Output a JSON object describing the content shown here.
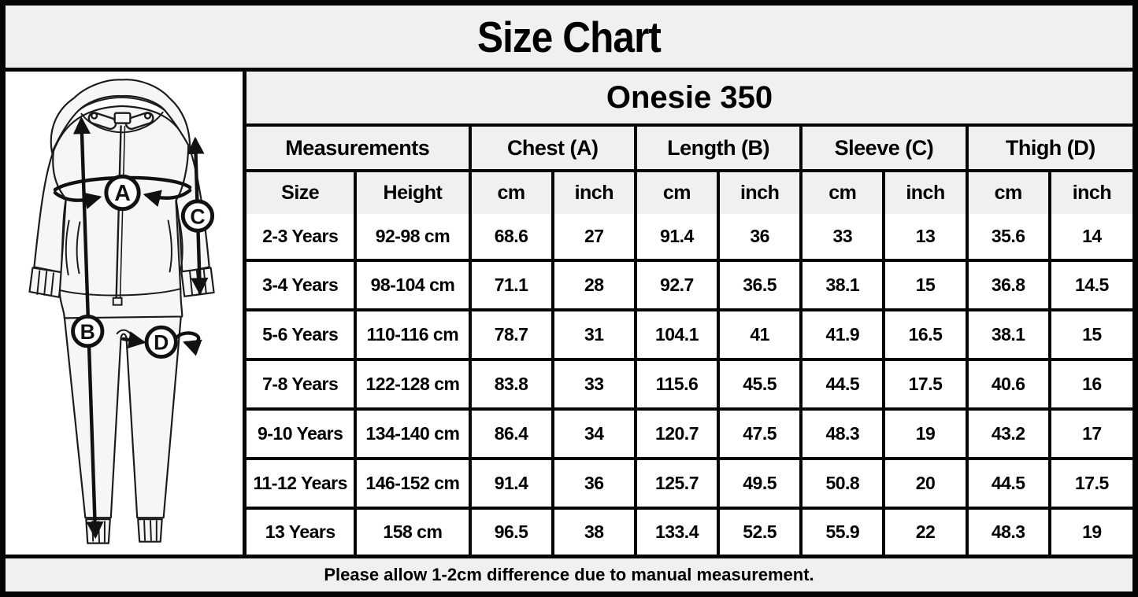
{
  "title": "Size Chart",
  "table": {
    "product": "Onesie 350",
    "group_headers": [
      {
        "label": "Measurements",
        "span": 2
      },
      {
        "label": "Chest (A)",
        "span": 2
      },
      {
        "label": "Length (B)",
        "span": 2
      },
      {
        "label": "Sleeve (C)",
        "span": 2
      },
      {
        "label": "Thigh (D)",
        "span": 2
      }
    ],
    "sub_headers": [
      "Size",
      "Height",
      "cm",
      "inch",
      "cm",
      "inch",
      "cm",
      "inch",
      "cm",
      "inch"
    ],
    "rows": [
      [
        "2-3 Years",
        "92-98 cm",
        "68.6",
        "27",
        "91.4",
        "36",
        "33",
        "13",
        "35.6",
        "14"
      ],
      [
        "3-4 Years",
        "98-104 cm",
        "71.1",
        "28",
        "92.7",
        "36.5",
        "38.1",
        "15",
        "36.8",
        "14.5"
      ],
      [
        "5-6 Years",
        "110-116 cm",
        "78.7",
        "31",
        "104.1",
        "41",
        "41.9",
        "16.5",
        "38.1",
        "15"
      ],
      [
        "7-8 Years",
        "122-128 cm",
        "83.8",
        "33",
        "115.6",
        "45.5",
        "44.5",
        "17.5",
        "40.6",
        "16"
      ],
      [
        "9-10 Years",
        "134-140 cm",
        "86.4",
        "34",
        "120.7",
        "47.5",
        "48.3",
        "19",
        "43.2",
        "17"
      ],
      [
        "11-12 Years",
        "146-152 cm",
        "91.4",
        "36",
        "125.7",
        "49.5",
        "50.8",
        "20",
        "44.5",
        "17.5"
      ],
      [
        "13 Years",
        "158 cm",
        "96.5",
        "38",
        "133.4",
        "52.5",
        "55.9",
        "22",
        "48.3",
        "19"
      ]
    ]
  },
  "diagram": {
    "labels": {
      "chest": "A",
      "length": "B",
      "sleeve": "C",
      "thigh": "D"
    }
  },
  "footer_note": "Please allow 1-2cm difference due to manual measurement.",
  "colors": {
    "header_gray": "#f0f0f0",
    "border_black": "#050505",
    "cell_white": "#ffffff"
  }
}
